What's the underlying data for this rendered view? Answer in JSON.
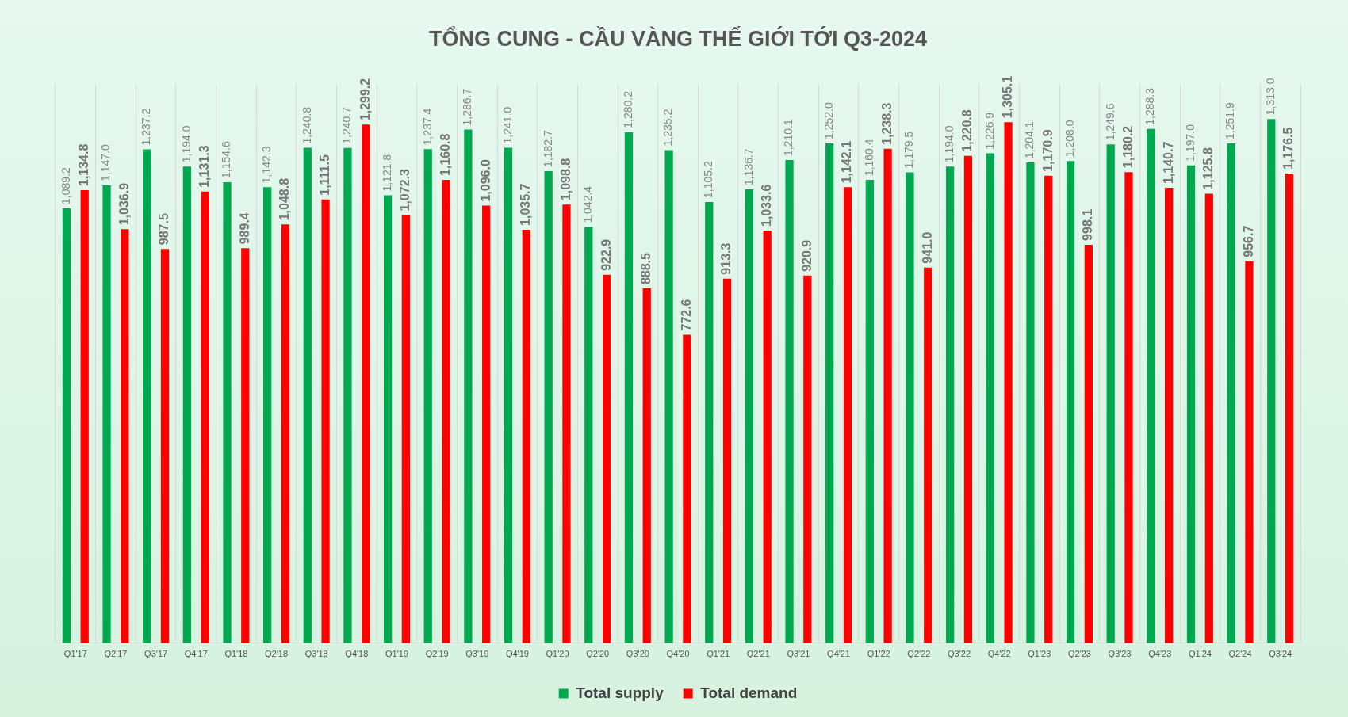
{
  "chart_data": {
    "type": "bar",
    "title": "TỔNG CUNG - CẦU VÀNG THẾ GIỚI TỚI Q3-2024",
    "categories": [
      "Q1'17",
      "Q2'17",
      "Q3'17",
      "Q4'17",
      "Q1'18",
      "Q2'18",
      "Q3'18",
      "Q4'18",
      "Q1'19",
      "Q2'19",
      "Q3'19",
      "Q4'19",
      "Q1'20",
      "Q2'20",
      "Q3'20",
      "Q4'20",
      "Q1'21",
      "Q2'21",
      "Q3'21",
      "Q4'21",
      "Q1'22",
      "Q2'22",
      "Q3'22",
      "Q4'22",
      "Q1'23",
      "Q2'23",
      "Q3'23",
      "Q4'23",
      "Q1'24",
      "Q2'24",
      "Q3'24"
    ],
    "series": [
      {
        "name": "Total supply",
        "color": "#00a84f",
        "values": [
          1089.2,
          1147.0,
          1237.2,
          1194.0,
          1154.6,
          1142.3,
          1240.8,
          1240.7,
          1121.8,
          1237.4,
          1286.7,
          1241.0,
          1182.7,
          1042.4,
          1280.2,
          1235.2,
          1105.2,
          1136.7,
          1210.1,
          1252.0,
          1160.4,
          1179.5,
          1194.0,
          1226.9,
          1204.1,
          1208.0,
          1249.6,
          1288.3,
          1197.0,
          1251.9,
          1313.0
        ],
        "value_labels": [
          "1,089.2",
          "1,147.0",
          "1,237.2",
          "1,194.0",
          "1,154.6",
          "1,142.3",
          "1,240.8",
          "1,240.7",
          "1,121.8",
          "1,237.4",
          "1,286.7",
          "1,241.0",
          "1,182.7",
          "1,042.4",
          "1,280.2",
          "1,235.2",
          "1,105.2",
          "1,136.7",
          "1,210.1",
          "1,252.0",
          "1,160.4",
          "1,179.5",
          "1,194.0",
          "1,226.9",
          "1,204.1",
          "1,208.0",
          "1,249.6",
          "1,288.3",
          "1,197.0",
          "1,251.9",
          "1,313.0"
        ]
      },
      {
        "name": "Total demand",
        "color": "#ff0000",
        "values": [
          1134.8,
          1036.9,
          987.5,
          1131.3,
          989.4,
          1048.8,
          1111.5,
          1299.2,
          1072.3,
          1160.8,
          1096.0,
          1035.7,
          1098.8,
          922.9,
          888.5,
          772.6,
          913.3,
          1033.6,
          920.9,
          1142.1,
          1238.3,
          941.0,
          1220.8,
          1305.1,
          1170.9,
          998.1,
          1180.2,
          1140.7,
          1125.8,
          956.7,
          1176.5
        ],
        "value_labels": [
          "1,134.8",
          "1,036.9",
          "987.5",
          "1,131.3",
          "989.4",
          "1,048.8",
          "1,111.5",
          "1,299.2",
          "1,072.3",
          "1,160.8",
          "1,096.0",
          "1,035.7",
          "1,098.8",
          "922.9",
          "888.5",
          "772.6",
          "913.3",
          "1,033.6",
          "920.9",
          "1,142.1",
          "1,238.3",
          "941.0",
          "1,220.8",
          "1,305.1",
          "1,170.9",
          "998.1",
          "1,180.2",
          "1,140.7",
          "1,125.8",
          "956.7",
          "1,176.5"
        ]
      }
    ],
    "ylim": [
      0,
      1400
    ],
    "tick_labels": "x",
    "grid": "x",
    "legend": "bottom"
  }
}
